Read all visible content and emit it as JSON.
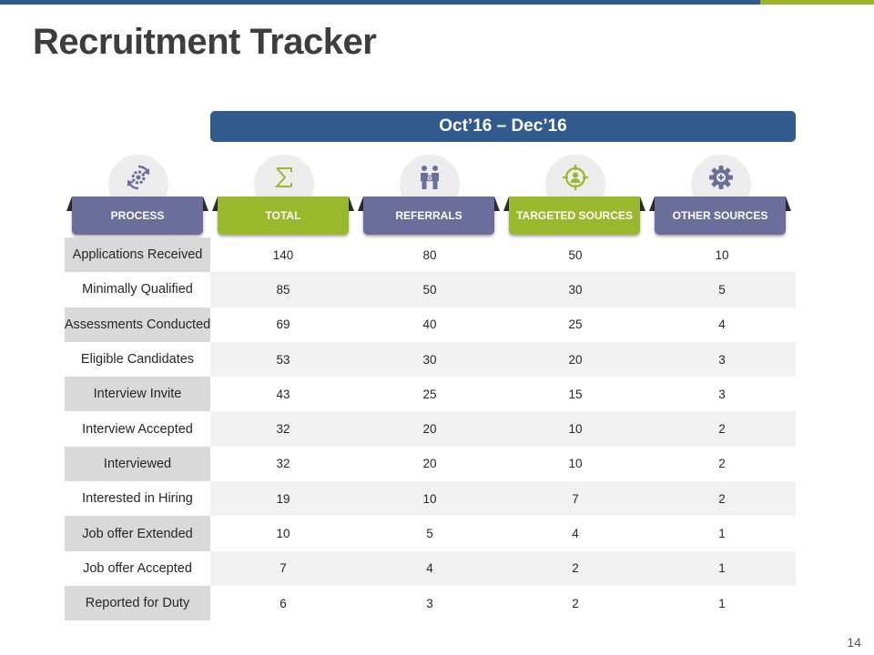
{
  "title": "Recruitment Tracker",
  "period": "Oct’16 – Dec’16",
  "columns": [
    {
      "label": "PROCESS",
      "icon": "refresh-gear-icon",
      "color": "#6b6e9b"
    },
    {
      "label": "TOTAL",
      "icon": "sigma-icon",
      "color": "#9ab82c"
    },
    {
      "label": "REFERRALS",
      "icon": "people-icon",
      "color": "#6b6e9b"
    },
    {
      "label": "TARGETED SOURCES",
      "icon": "target-person-icon",
      "color": "#9ab82c"
    },
    {
      "label": "OTHER SOURCES",
      "icon": "gear-plus-icon",
      "color": "#6b6e9b"
    }
  ],
  "rows": [
    {
      "process": "Applications Received",
      "total": "140",
      "referrals": "80",
      "targeted": "50",
      "other": "10"
    },
    {
      "process": "Minimally Qualified",
      "total": "85",
      "referrals": "50",
      "targeted": "30",
      "other": "5"
    },
    {
      "process": "Assessments Conducted",
      "total": "69",
      "referrals": "40",
      "targeted": "25",
      "other": "4"
    },
    {
      "process": "Eligible Candidates",
      "total": "53",
      "referrals": "30",
      "targeted": "20",
      "other": "3"
    },
    {
      "process": "Interview Invite",
      "total": "43",
      "referrals": "25",
      "targeted": "15",
      "other": "3"
    },
    {
      "process": "Interview Accepted",
      "total": "32",
      "referrals": "20",
      "targeted": "10",
      "other": "2"
    },
    {
      "process": "Interviewed",
      "total": "32",
      "referrals": "20",
      "targeted": "10",
      "other": "2"
    },
    {
      "process": "Interested in Hiring",
      "total": "19",
      "referrals": "10",
      "targeted": "7",
      "other": "2"
    },
    {
      "process": "Job offer Extended",
      "total": "10",
      "referrals": "5",
      "targeted": "4",
      "other": "1"
    },
    {
      "process": "Job offer Accepted",
      "total": "7",
      "referrals": "4",
      "targeted": "2",
      "other": "1"
    },
    {
      "process": "Reported for Duty",
      "total": "6",
      "referrals": "3",
      "targeted": "2",
      "other": "1"
    }
  ],
  "page_number": "14",
  "colors": {
    "header_blue": "#305b8c",
    "accent_green": "#9ab82c",
    "ribbon_purple": "#6b6e9b"
  }
}
